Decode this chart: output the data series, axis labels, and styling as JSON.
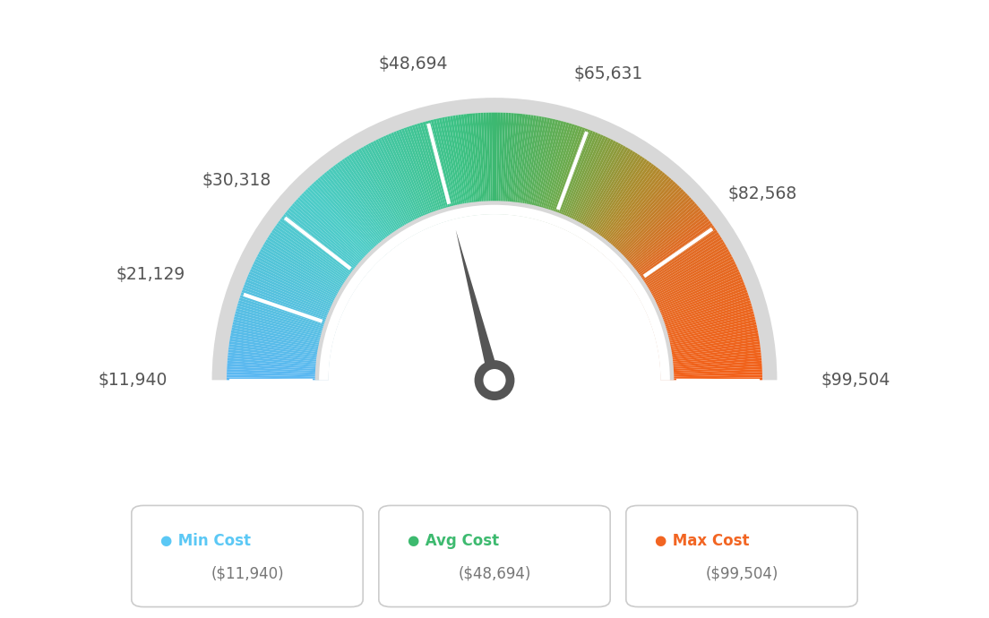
{
  "min_val": 11940,
  "max_val": 99504,
  "avg_val": 48694,
  "labels": [
    "$11,940",
    "$21,129",
    "$30,318",
    "$48,694",
    "$65,631",
    "$82,568",
    "$99,504"
  ],
  "label_values": [
    11940,
    21129,
    30318,
    48694,
    65631,
    82568,
    99504
  ],
  "min_cost_label": "Min Cost",
  "avg_cost_label": "Avg Cost",
  "max_cost_label": "Max Cost",
  "min_cost_val": "($11,940)",
  "avg_cost_val": "($48,694)",
  "max_cost_val": "($99,504)",
  "min_color": "#5bc8f5",
  "avg_color": "#3dba6f",
  "max_color": "#f26522",
  "background_color": "#ffffff",
  "color_stops": [
    [
      0.0,
      [
        0.36,
        0.72,
        0.95
      ]
    ],
    [
      0.25,
      [
        0.3,
        0.8,
        0.78
      ]
    ],
    [
      0.45,
      [
        0.24,
        0.76,
        0.52
      ]
    ],
    [
      0.5,
      [
        0.24,
        0.72,
        0.44
      ]
    ],
    [
      0.6,
      [
        0.42,
        0.67,
        0.3
      ]
    ],
    [
      0.7,
      [
        0.68,
        0.55,
        0.18
      ]
    ],
    [
      0.8,
      [
        0.88,
        0.42,
        0.14
      ]
    ],
    [
      1.0,
      [
        0.95,
        0.38,
        0.1
      ]
    ]
  ]
}
